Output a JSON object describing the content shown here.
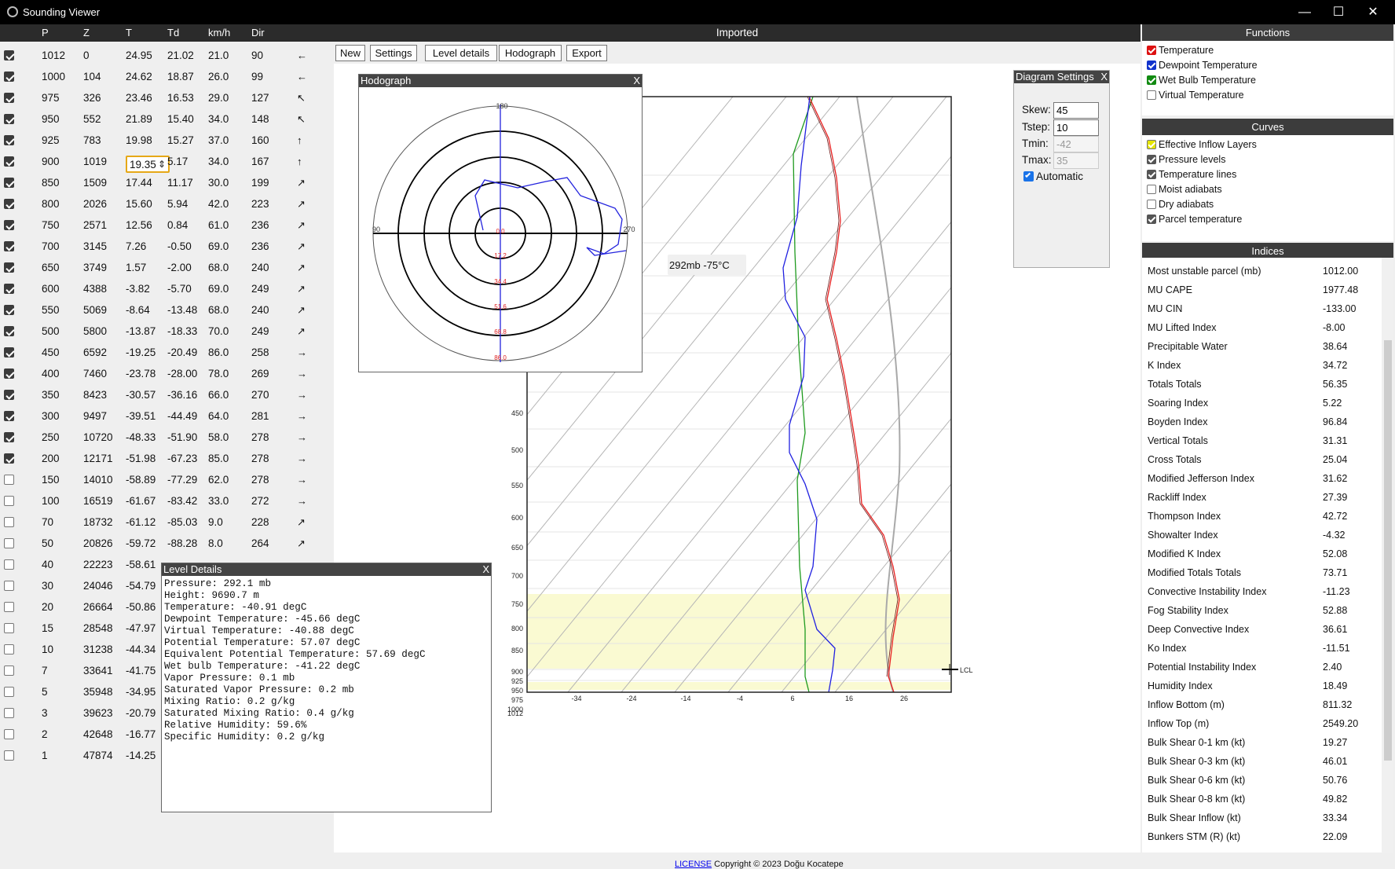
{
  "window": {
    "title": "Sounding Viewer",
    "minimize": "—",
    "maximize": "☐",
    "close": "✕"
  },
  "table": {
    "headers": [
      "P",
      "Z",
      "T",
      "Td",
      "km/h",
      "Dir"
    ],
    "rows": [
      {
        "checked": true,
        "P": "1012",
        "Z": "0",
        "T": "24.95",
        "Td": "21.02",
        "kmh": "21.0",
        "Dir": "90",
        "arrow": "←"
      },
      {
        "checked": true,
        "P": "1000",
        "Z": "104",
        "T": "24.62",
        "Td": "18.87",
        "kmh": "26.0",
        "Dir": "99",
        "arrow": "←"
      },
      {
        "checked": true,
        "P": "975",
        "Z": "326",
        "T": "23.46",
        "Td": "16.53",
        "kmh": "29.0",
        "Dir": "127",
        "arrow": "↖"
      },
      {
        "checked": true,
        "P": "950",
        "Z": "552",
        "T": "21.89",
        "Td": "15.40",
        "kmh": "34.0",
        "Dir": "148",
        "arrow": "↖"
      },
      {
        "checked": true,
        "P": "925",
        "Z": "783",
        "T": "19.98",
        "Td": "15.27",
        "kmh": "37.0",
        "Dir": "160",
        "arrow": "↑"
      },
      {
        "checked": true,
        "P": "900",
        "Z": "1019",
        "T": "19.35",
        "Td": "5.17",
        "kmh": "34.0",
        "Dir": "167",
        "arrow": "↑"
      },
      {
        "checked": true,
        "P": "850",
        "Z": "1509",
        "T": "17.44",
        "Td": "11.17",
        "kmh": "30.0",
        "Dir": "199",
        "arrow": "↗"
      },
      {
        "checked": true,
        "P": "800",
        "Z": "2026",
        "T": "15.60",
        "Td": "5.94",
        "kmh": "42.0",
        "Dir": "223",
        "arrow": "↗"
      },
      {
        "checked": true,
        "P": "750",
        "Z": "2571",
        "T": "12.56",
        "Td": "0.84",
        "kmh": "61.0",
        "Dir": "236",
        "arrow": "↗"
      },
      {
        "checked": true,
        "P": "700",
        "Z": "3145",
        "T": "7.26",
        "Td": "-0.50",
        "kmh": "69.0",
        "Dir": "236",
        "arrow": "↗"
      },
      {
        "checked": true,
        "P": "650",
        "Z": "3749",
        "T": "1.57",
        "Td": "-2.00",
        "kmh": "68.0",
        "Dir": "240",
        "arrow": "↗"
      },
      {
        "checked": true,
        "P": "600",
        "Z": "4388",
        "T": "-3.82",
        "Td": "-5.70",
        "kmh": "69.0",
        "Dir": "249",
        "arrow": "↗"
      },
      {
        "checked": true,
        "P": "550",
        "Z": "5069",
        "T": "-8.64",
        "Td": "-13.48",
        "kmh": "68.0",
        "Dir": "240",
        "arrow": "↗"
      },
      {
        "checked": true,
        "P": "500",
        "Z": "5800",
        "T": "-13.87",
        "Td": "-18.33",
        "kmh": "70.0",
        "Dir": "249",
        "arrow": "↗"
      },
      {
        "checked": true,
        "P": "450",
        "Z": "6592",
        "T": "-19.25",
        "Td": "-20.49",
        "kmh": "86.0",
        "Dir": "258",
        "arrow": "→"
      },
      {
        "checked": true,
        "P": "400",
        "Z": "7460",
        "T": "-23.78",
        "Td": "-28.00",
        "kmh": "78.0",
        "Dir": "269",
        "arrow": "→"
      },
      {
        "checked": true,
        "P": "350",
        "Z": "8423",
        "T": "-30.57",
        "Td": "-36.16",
        "kmh": "66.0",
        "Dir": "270",
        "arrow": "→"
      },
      {
        "checked": true,
        "P": "300",
        "Z": "9497",
        "T": "-39.51",
        "Td": "-44.49",
        "kmh": "64.0",
        "Dir": "281",
        "arrow": "→"
      },
      {
        "checked": true,
        "P": "250",
        "Z": "10720",
        "T": "-48.33",
        "Td": "-51.90",
        "kmh": "58.0",
        "Dir": "278",
        "arrow": "→"
      },
      {
        "checked": true,
        "P": "200",
        "Z": "12171",
        "T": "-51.98",
        "Td": "-67.23",
        "kmh": "85.0",
        "Dir": "278",
        "arrow": "→"
      },
      {
        "checked": false,
        "P": "150",
        "Z": "14010",
        "T": "-58.89",
        "Td": "-77.29",
        "kmh": "62.0",
        "Dir": "278",
        "arrow": "→"
      },
      {
        "checked": false,
        "P": "100",
        "Z": "16519",
        "T": "-61.67",
        "Td": "-83.42",
        "kmh": "33.0",
        "Dir": "272",
        "arrow": "→"
      },
      {
        "checked": false,
        "P": "70",
        "Z": "18732",
        "T": "-61.12",
        "Td": "-85.03",
        "kmh": "9.0",
        "Dir": "228",
        "arrow": "↗"
      },
      {
        "checked": false,
        "P": "50",
        "Z": "20826",
        "T": "-59.72",
        "Td": "-88.28",
        "kmh": "8.0",
        "Dir": "264",
        "arrow": "↗"
      },
      {
        "checked": false,
        "P": "40",
        "Z": "22223",
        "T": "-58.61",
        "Td": "",
        "kmh": "",
        "Dir": "",
        "arrow": ""
      },
      {
        "checked": false,
        "P": "30",
        "Z": "24046",
        "T": "-54.79",
        "Td": "",
        "kmh": "",
        "Dir": "",
        "arrow": ""
      },
      {
        "checked": false,
        "P": "20",
        "Z": "26664",
        "T": "-50.86",
        "Td": "",
        "kmh": "",
        "Dir": "",
        "arrow": ""
      },
      {
        "checked": false,
        "P": "15",
        "Z": "28548",
        "T": "-47.97",
        "Td": "",
        "kmh": "",
        "Dir": "",
        "arrow": ""
      },
      {
        "checked": false,
        "P": "10",
        "Z": "31238",
        "T": "-44.34",
        "Td": "",
        "kmh": "",
        "Dir": "",
        "arrow": ""
      },
      {
        "checked": false,
        "P": "7",
        "Z": "33641",
        "T": "-41.75",
        "Td": "",
        "kmh": "",
        "Dir": "",
        "arrow": ""
      },
      {
        "checked": false,
        "P": "5",
        "Z": "35948",
        "T": "-34.95",
        "Td": "",
        "kmh": "",
        "Dir": "",
        "arrow": ""
      },
      {
        "checked": false,
        "P": "3",
        "Z": "39623",
        "T": "-20.79",
        "Td": "",
        "kmh": "",
        "Dir": "",
        "arrow": ""
      },
      {
        "checked": false,
        "P": "2",
        "Z": "42648",
        "T": "-16.77",
        "Td": "",
        "kmh": "",
        "Dir": "",
        "arrow": ""
      },
      {
        "checked": false,
        "P": "1",
        "Z": "47874",
        "T": "-14.25",
        "Td": "",
        "kmh": "",
        "Dir": "",
        "arrow": ""
      }
    ],
    "edit_cell_value": "19.35",
    "edit_spinner": "⇕"
  },
  "center": {
    "header": "Imported",
    "toolbar": {
      "new": "New",
      "settings": "Settings",
      "level_details": "Level details",
      "hodograph": "Hodograph",
      "export": "Export"
    },
    "footer": {
      "license": "LICENSE",
      "copyright": "Copyright © 2023 Doğu Kocatepe"
    },
    "hover_readout": "292mb  -75°C"
  },
  "hodograph": {
    "title": "Hodograph",
    "close": "X",
    "dir_labels": {
      "top": "180",
      "left": "90",
      "right": "270"
    },
    "ring_labels": [
      "0.0",
      "17.2",
      "34.4",
      "51.6",
      "68.8",
      "86.0"
    ]
  },
  "diagram_settings": {
    "title": "Diagram Settings",
    "close": "X",
    "skew_label": "Skew:",
    "skew": "45",
    "tstep_label": "Tstep:",
    "tstep": "10",
    "tmin_label": "Tmin:",
    "tmin": "-42",
    "tmax_label": "Tmax:",
    "tmax": "35",
    "automatic_label": "Automatic",
    "automatic": true
  },
  "level_details": {
    "title": "Level Details",
    "close": "X",
    "lines": [
      "Pressure: 292.1 mb",
      "Height: 9690.7 m",
      "Temperature: -40.91 degC",
      "Dewpoint Temperature: -45.66 degC",
      "Virtual Temperature: -40.88 degC",
      "Potential Temperature: 57.07 degC",
      "Equivalent Potential Temperature: 57.69 degC",
      "Wet bulb Temperature: -41.22 degC",
      "Vapor Pressure: 0.1 mb",
      "Saturated Vapor Pressure: 0.2 mb",
      "Mixing Ratio: 0.2 g/kg",
      "Saturated Mixing Ratio: 0.4 g/kg",
      "Relative Humidity: 59.6%",
      "Specific Humidity: 0.2 g/kg"
    ]
  },
  "skewt": {
    "pressure_labels": [
      "450",
      "500",
      "550",
      "600",
      "650",
      "700",
      "750",
      "800",
      "850",
      "900",
      "925",
      "950",
      "975",
      "1000",
      "1012"
    ],
    "temp_labels": [
      "-34",
      "-24",
      "-14",
      "-4",
      "6",
      "16",
      "26"
    ],
    "lcl_label": "LCL",
    "colors": {
      "temperature": "#e82020",
      "dewpoint": "#2020e0",
      "wetbulb": "#1e9a1e",
      "parcel": "#a9a9a9",
      "inflow": "#fafad2"
    }
  },
  "functions": {
    "title": "Functions",
    "items": [
      {
        "label": "Temperature",
        "checked": true,
        "color": "#d11"
      },
      {
        "label": "Dewpoint Temperature",
        "checked": true,
        "color": "#1133cc"
      },
      {
        "label": "Wet Bulb Temperature",
        "checked": true,
        "color": "#118a11"
      },
      {
        "label": "Virtual Temperature",
        "checked": false,
        "color": "#ffffff"
      }
    ]
  },
  "curves": {
    "title": "Curves",
    "items": [
      {
        "label": "Effective Inflow Layers",
        "checked": true,
        "color": "#e6e600"
      },
      {
        "label": "Pressure levels",
        "checked": true,
        "color": "#555555"
      },
      {
        "label": "Temperature lines",
        "checked": true,
        "color": "#555555"
      },
      {
        "label": "Moist adiabats",
        "checked": false,
        "color": "#ffffff"
      },
      {
        "label": "Dry adiabats",
        "checked": false,
        "color": "#ffffff"
      },
      {
        "label": "Parcel temperature",
        "checked": true,
        "color": "#555555"
      }
    ]
  },
  "indices": {
    "title": "Indices",
    "items": [
      {
        "name": "Most unstable parcel (mb)",
        "value": "1012.00"
      },
      {
        "name": "MU CAPE",
        "value": "1977.48"
      },
      {
        "name": "MU CIN",
        "value": "-133.00"
      },
      {
        "name": "MU Lifted Index",
        "value": "-8.00"
      },
      {
        "name": "Precipitable Water",
        "value": "38.64"
      },
      {
        "name": "K Index",
        "value": "34.72"
      },
      {
        "name": "Totals Totals",
        "value": "56.35"
      },
      {
        "name": "Soaring Index",
        "value": "5.22"
      },
      {
        "name": "Boyden Index",
        "value": "96.84"
      },
      {
        "name": "Vertical Totals",
        "value": "31.31"
      },
      {
        "name": "Cross Totals",
        "value": "25.04"
      },
      {
        "name": "Modified Jefferson Index",
        "value": "31.62"
      },
      {
        "name": "Rackliff Index",
        "value": "27.39"
      },
      {
        "name": "Thompson Index",
        "value": "42.72"
      },
      {
        "name": "Showalter Index",
        "value": "-4.32"
      },
      {
        "name": "Modified K Index",
        "value": "52.08"
      },
      {
        "name": "Modified Totals Totals",
        "value": "73.71"
      },
      {
        "name": "Convective Instability Index",
        "value": "-11.23"
      },
      {
        "name": "Fog Stability Index",
        "value": "52.88"
      },
      {
        "name": "Deep Convective Index",
        "value": "36.61"
      },
      {
        "name": "Ko Index",
        "value": "-11.51"
      },
      {
        "name": "Potential Instability Index",
        "value": "2.40"
      },
      {
        "name": "Humidity Index",
        "value": "18.49"
      },
      {
        "name": "Inflow Bottom (m)",
        "value": "811.32"
      },
      {
        "name": "Inflow Top (m)",
        "value": "2549.20"
      },
      {
        "name": "Bulk Shear 0-1 km (kt)",
        "value": "19.27"
      },
      {
        "name": "Bulk Shear 0-3 km (kt)",
        "value": "46.01"
      },
      {
        "name": "Bulk Shear 0-6 km (kt)",
        "value": "50.76"
      },
      {
        "name": "Bulk Shear 0-8 km (kt)",
        "value": "49.82"
      },
      {
        "name": "Bulk Shear Inflow (kt)",
        "value": "33.34"
      },
      {
        "name": "Bunkers STM (R) (kt)",
        "value": "22.09"
      }
    ]
  }
}
